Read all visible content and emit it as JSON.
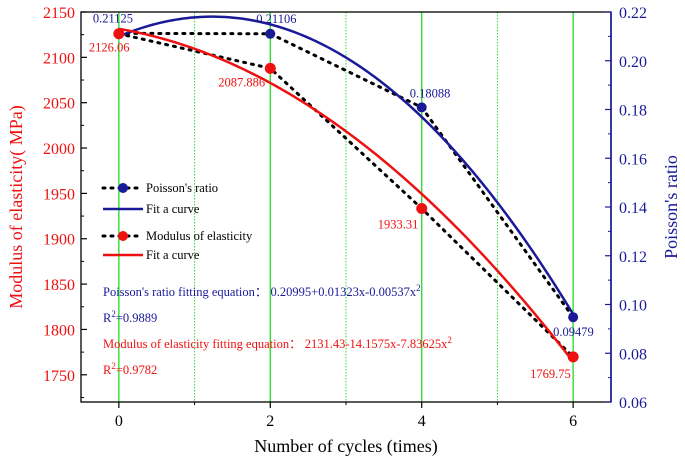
{
  "chart_data": {
    "type": "line",
    "title": "",
    "xlabel": "Number of cycles (times)",
    "ylabel_left": "Modulus of elasticity( MPa)",
    "ylabel_right": "Poisson's ratio",
    "xlim": [
      -0.5,
      6.5
    ],
    "ylim_left": [
      1720,
      2150
    ],
    "ylim_right": [
      0.06,
      0.22
    ],
    "x_ticks": [
      0,
      2,
      4,
      6
    ],
    "y_left_ticks": [
      1750,
      1800,
      1850,
      1900,
      1950,
      2000,
      2050,
      2100,
      2150
    ],
    "y_right_ticks": [
      0.06,
      0.08,
      0.1,
      0.12,
      0.14,
      0.16,
      0.18,
      0.2,
      0.22
    ],
    "vertical_grid_major": [
      0,
      2,
      4,
      6
    ],
    "vertical_grid_minor": [
      1,
      3,
      5
    ],
    "colors": {
      "poisson": "#1a1a99",
      "modulus": "#ee1111",
      "grid": "#33dd33",
      "dotted": "#000000"
    },
    "series": [
      {
        "name": "Poisson's ratio",
        "axis": "right",
        "x": [
          0,
          2,
          4,
          6
        ],
        "y": [
          0.21125,
          0.21106,
          0.18088,
          0.09479
        ],
        "labels": [
          "0.21125",
          "0.21106",
          "0.18088",
          "0.09479"
        ]
      },
      {
        "name": "Modulus of elasticity",
        "axis": "left",
        "x": [
          0,
          2,
          4,
          6
        ],
        "y": [
          2126.06,
          2087.886,
          1933.31,
          1769.75
        ],
        "labels": [
          "2126.06",
          "2087.886",
          "1933.31",
          "1769.75"
        ]
      }
    ],
    "fits": {
      "poisson": {
        "name": "Fit a curve",
        "coeffs": [
          0.20995,
          0.01323,
          -0.00537
        ]
      },
      "modulus": {
        "name": "Fit a curve",
        "coeffs": [
          2131.43,
          -14.1575,
          -7.83625
        ]
      }
    },
    "legend": {
      "placement": "middle-left",
      "poisson_points": "Poisson's ratio",
      "poisson_fit": "Fit a curve",
      "modulus_points": "Modulus of elasticity",
      "modulus_fit": "Fit a curve"
    },
    "annotations": {
      "poisson_eq_prefix": "Poisson's ratio fitting equation： 0.20995+0.01323x-0.00537x",
      "poisson_r2_value": "=0.9889",
      "modulus_eq_prefix": "Modulus of elasticity fitting equation： 2131.43-14.1575x-7.83625x",
      "modulus_r2_value": "=0.9782",
      "r_letter": "R",
      "superscript": "2"
    }
  }
}
